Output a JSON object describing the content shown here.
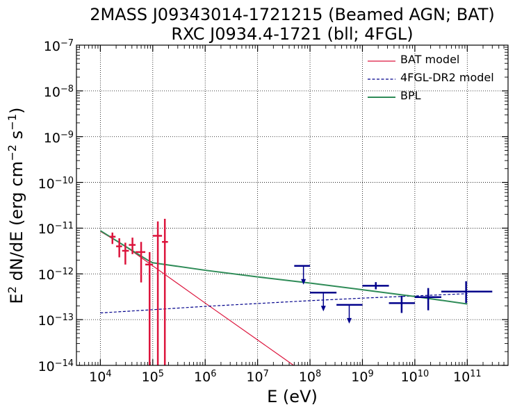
{
  "chart_data": {
    "type": "scatter",
    "title": "2MASS J09343014-1721215 (Beamed AGN; BAT)",
    "subtitle": "RXC J0934.4-1721 (bll; 4FGL)",
    "xlabel": "E (eV)",
    "ylabel_base": "E",
    "ylabel_pre": "dN/dE (erg cm",
    "ylabel_mid": " s",
    "ylabel_end": ")",
    "xscale": "log",
    "yscale": "log",
    "xlim": [
      3500,
      600000000000
    ],
    "ylim": [
      1e-14,
      1e-07
    ],
    "grid": true,
    "grid_style": "dotted",
    "legend_position": "top-right",
    "x_tick_labels": [
      "10^4",
      "10^5",
      "10^6",
      "10^7",
      "10^8",
      "10^9",
      "10^10",
      "10^11"
    ],
    "y_tick_labels": [
      "10^-14",
      "10^-13",
      "10^-12",
      "10^-11",
      "10^-10",
      "10^-9",
      "10^-8",
      "10^-7"
    ],
    "series": [
      {
        "name": "BAT model",
        "kind": "line",
        "color": "#dc143c",
        "x": [
          10000,
          30000,
          100000,
          1000000,
          10000000,
          100000000
        ],
        "y": [
          8.5e-12,
          4e-12,
          1.5e-12,
          2.3e-13,
          3.6e-14,
          5.6e-15
        ]
      },
      {
        "name": "4FGL-DR2 model",
        "kind": "dashed-line",
        "color": "#00008b",
        "x": [
          10000,
          100000,
          1000000,
          10000000,
          100000000,
          1000000000,
          10000000000,
          100000000000
        ],
        "y": [
          1.4e-13,
          1.65e-13,
          1.95e-13,
          2.25e-13,
          2.6e-13,
          2.95e-13,
          3.3e-13,
          3.7e-13
        ]
      },
      {
        "name": "BPL",
        "kind": "line",
        "color": "#2e8b57",
        "x": [
          10000,
          30000,
          80000,
          100000,
          1000000,
          10000000,
          100000000,
          1000000000,
          10000000000,
          100000000000
        ],
        "y": [
          8.8e-12,
          4e-12,
          2e-12,
          1.75e-12,
          1.2e-12,
          8.6e-13,
          6.3e-13,
          4.5e-13,
          3.2e-13,
          2.2e-13
        ]
      }
    ],
    "bat_points": {
      "color": "#dc143c",
      "points": [
        {
          "x": 17000,
          "xlo": 15000,
          "xhi": 19500,
          "y": 6.5e-12,
          "ylo": 4.5e-12,
          "yhi": 8e-12
        },
        {
          "x": 23000,
          "xlo": 20000,
          "xhi": 26000,
          "y": 4e-12,
          "ylo": 2.3e-12,
          "yhi": 6e-12
        },
        {
          "x": 30000,
          "xlo": 26000,
          "xhi": 35000,
          "y": 3.2e-12,
          "ylo": 1.6e-12,
          "yhi": 4.8e-12
        },
        {
          "x": 41000,
          "xlo": 35000,
          "xhi": 47000,
          "y": 4.3e-12,
          "ylo": 2.7e-12,
          "yhi": 6.2e-12
        },
        {
          "x": 60000,
          "xlo": 47000,
          "xhi": 72000,
          "y": 3e-12,
          "ylo": 6.5e-13,
          "yhi": 5e-12
        },
        {
          "x": 87000,
          "xlo": 72000,
          "xhi": 100000,
          "y": 1.6e-12,
          "ylo": 1e-14,
          "yhi": 3e-12
        },
        {
          "x": 125000,
          "xlo": 100000,
          "xhi": 150000,
          "y": 6.8e-12,
          "ylo": 1e-14,
          "yhi": 1.4e-11
        },
        {
          "x": 170000,
          "xlo": 150000,
          "xhi": 195000,
          "y": 5e-12,
          "ylo": 1e-14,
          "yhi": 1.6e-11
        }
      ]
    },
    "fermi_points": {
      "color": "#00008b",
      "points": [
        {
          "x": 75000000,
          "xlo": 50000000,
          "xhi": 100000000,
          "y": 1.5e-12,
          "upper_limit": true
        },
        {
          "x": 180000000,
          "xlo": 100000000,
          "xhi": 320000000,
          "y": 3.9e-13,
          "upper_limit": true
        },
        {
          "x": 560000000,
          "xlo": 320000000,
          "xhi": 1000000000,
          "y": 2.1e-13,
          "upper_limit": true
        },
        {
          "x": 1800000000,
          "xlo": 1000000000,
          "xhi": 3200000000,
          "y": 5.5e-13,
          "ylo": 4.6e-13,
          "yhi": 6.6e-13,
          "upper_limit": false
        },
        {
          "x": 5600000000,
          "xlo": 3200000000,
          "xhi": 10000000000,
          "y": 2.3e-13,
          "ylo": 1.4e-13,
          "yhi": 3.3e-13,
          "upper_limit": false
        },
        {
          "x": 18000000000,
          "xlo": 10000000000,
          "xhi": 32000000000,
          "y": 3.1e-13,
          "ylo": 1.6e-13,
          "yhi": 4.9e-13,
          "upper_limit": false
        },
        {
          "x": 95000000000,
          "xlo": 32000000000,
          "xhi": 300000000000,
          "y": 4.1e-13,
          "ylo": 2.3e-13,
          "yhi": 6.9e-13,
          "upper_limit": false
        }
      ]
    }
  }
}
